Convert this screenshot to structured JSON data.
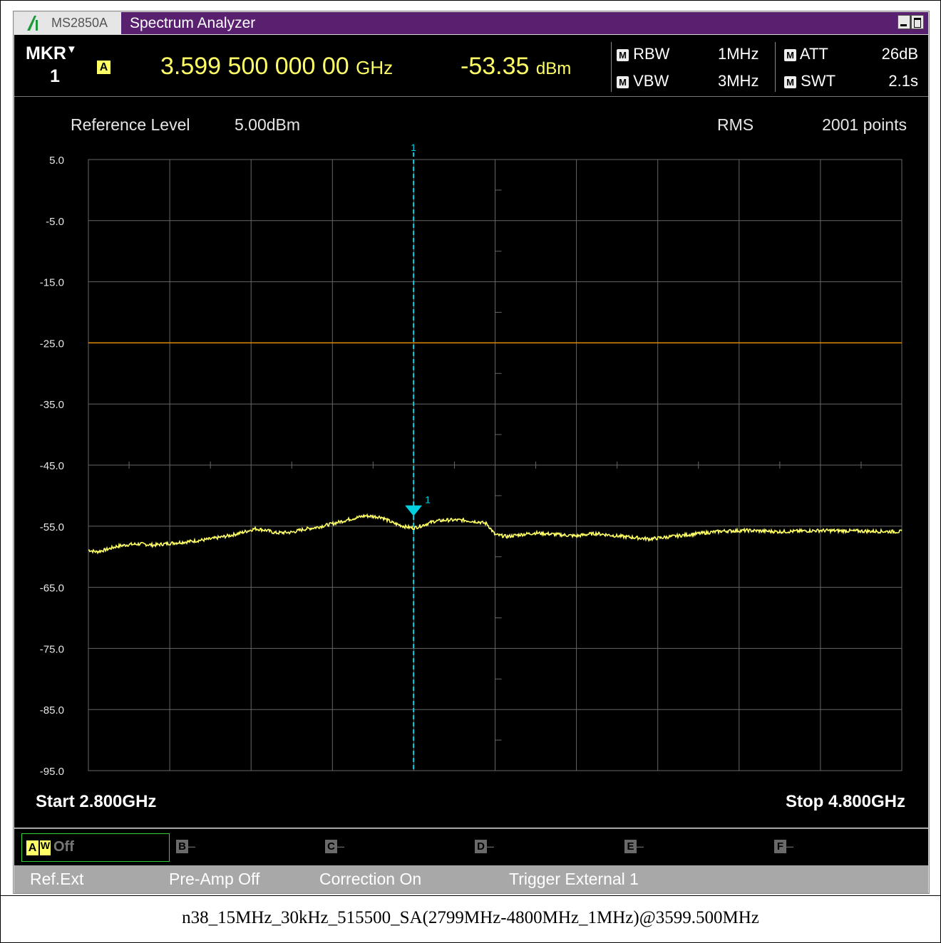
{
  "window": {
    "model": "MS2850A",
    "app_title": "Spectrum Analyzer"
  },
  "marker_bar": {
    "mkr_label": "MKR",
    "mkr_number": "1",
    "trace_badge": "A",
    "frequency_value": "3.599 500 000 00",
    "frequency_unit": "GHz",
    "level_value": "-53.35",
    "level_unit": "dBm",
    "params": {
      "rbw_label": "RBW",
      "rbw_value": "1MHz",
      "vbw_label": "VBW",
      "vbw_value": "3MHz",
      "att_label": "ATT",
      "att_value": "26dB",
      "swt_label": "SWT",
      "swt_value": "2.1s",
      "mode_badge": "M"
    }
  },
  "graph_header": {
    "ref_label": "Reference Level",
    "ref_value": "5.00dBm",
    "detector": "RMS",
    "points": "2001 points"
  },
  "axis": {
    "start_label": "Start 2.800GHz",
    "stop_label": "Stop 4.800GHz"
  },
  "chart_data": {
    "type": "line",
    "x_unit": "GHz",
    "y_unit": "dBm",
    "xlim": [
      2.8,
      4.8
    ],
    "ylim": [
      -95,
      5
    ],
    "y_ticks": [
      "5.0",
      "-5.0",
      "-15.0",
      "-25.0",
      "-35.0",
      "-45.0",
      "-55.0",
      "-65.0",
      "-75.0",
      "-85.0",
      "-95.0"
    ],
    "grid": true,
    "limit_line_dbm": -25,
    "marker": {
      "label": "1",
      "freq_ghz": 3.5995,
      "level_dbm": -53.35
    },
    "series": [
      {
        "color": "#ffff66",
        "points": [
          [
            2.8,
            -58.9
          ],
          [
            2.82,
            -59.2
          ],
          [
            2.84,
            -58.9
          ],
          [
            2.87,
            -58.3
          ],
          [
            2.9,
            -58.0
          ],
          [
            2.93,
            -57.9
          ],
          [
            2.96,
            -58.1
          ],
          [
            3.0,
            -57.8
          ],
          [
            3.05,
            -57.5
          ],
          [
            3.1,
            -57.1
          ],
          [
            3.15,
            -56.5
          ],
          [
            3.18,
            -56.0
          ],
          [
            3.21,
            -55.4
          ],
          [
            3.24,
            -55.7
          ],
          [
            3.26,
            -56.1
          ],
          [
            3.3,
            -56.0
          ],
          [
            3.33,
            -55.5
          ],
          [
            3.36,
            -55.2
          ],
          [
            3.4,
            -54.6
          ],
          [
            3.44,
            -53.9
          ],
          [
            3.48,
            -53.3
          ],
          [
            3.52,
            -53.5
          ],
          [
            3.55,
            -54.5
          ],
          [
            3.58,
            -55.1
          ],
          [
            3.6,
            -55.3
          ],
          [
            3.62,
            -54.9
          ],
          [
            3.65,
            -54.2
          ],
          [
            3.68,
            -54.0
          ],
          [
            3.72,
            -54.0
          ],
          [
            3.76,
            -54.3
          ],
          [
            3.78,
            -54.6
          ],
          [
            3.8,
            -56.4
          ],
          [
            3.83,
            -56.7
          ],
          [
            3.86,
            -56.4
          ],
          [
            3.9,
            -56.1
          ],
          [
            3.94,
            -56.3
          ],
          [
            3.98,
            -56.5
          ],
          [
            4.0,
            -56.6
          ],
          [
            4.03,
            -56.3
          ],
          [
            4.05,
            -56.2
          ],
          [
            4.1,
            -56.6
          ],
          [
            4.15,
            -56.9
          ],
          [
            4.18,
            -57.1
          ],
          [
            4.22,
            -56.8
          ],
          [
            4.26,
            -56.5
          ],
          [
            4.3,
            -56.2
          ],
          [
            4.36,
            -55.8
          ],
          [
            4.42,
            -55.7
          ],
          [
            4.5,
            -55.9
          ],
          [
            4.6,
            -55.7
          ],
          [
            4.7,
            -55.8
          ],
          [
            4.8,
            -55.9
          ]
        ]
      }
    ]
  },
  "trace_bar": {
    "active": {
      "badge": "A",
      "mode": "W",
      "state": "Off"
    },
    "inactive": [
      {
        "badge": "B",
        "state": "–"
      },
      {
        "badge": "C",
        "state": "–"
      },
      {
        "badge": "D",
        "state": "–"
      },
      {
        "badge": "E",
        "state": "–"
      },
      {
        "badge": "F",
        "state": "–"
      }
    ]
  },
  "status_bar": {
    "ref": "Ref.Ext",
    "preamp": "Pre-Amp Off",
    "correction": "Correction On",
    "trigger": "Trigger External 1"
  },
  "caption": "n38_15MHz_30kHz_515500_SA(2799MHz-4800MHz_1MHz)@3599.500MHz",
  "colors": {
    "title_bar": "#5a2070",
    "trace": "#ffff66",
    "marker": "#00d0e0",
    "limit_line": "#e08a00",
    "grid": "#666666"
  }
}
